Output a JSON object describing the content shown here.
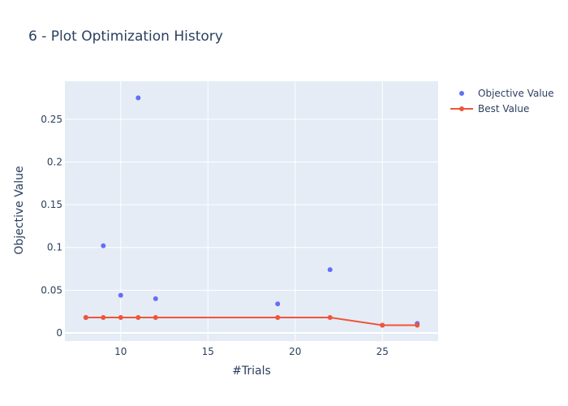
{
  "chart_data": {
    "type": "scatter",
    "title": "6 - Plot Optimization History",
    "xlabel": "#Trials",
    "ylabel": "Objective Value",
    "xlim": [
      6.8,
      28.2
    ],
    "ylim": [
      -0.0095,
      0.2945
    ],
    "x_ticks": [
      10,
      15,
      20,
      25
    ],
    "x_tick_labels": [
      "10",
      "15",
      "20",
      "25"
    ],
    "y_ticks": [
      0,
      0.05,
      0.1,
      0.15,
      0.2,
      0.25
    ],
    "y_tick_labels": [
      "0",
      "0.05",
      "0.1",
      "0.15",
      "0.2",
      "0.25"
    ],
    "grid": true,
    "legend_position": "top-right",
    "series": [
      {
        "name": "Objective Value",
        "mode": "markers",
        "color": "#636efa",
        "x": [
          8,
          9,
          10,
          11,
          12,
          19,
          22,
          25,
          27
        ],
        "y": [
          0.018,
          0.102,
          0.044,
          0.275,
          0.04,
          0.034,
          0.074,
          0.009,
          0.011
        ]
      },
      {
        "name": "Best Value",
        "mode": "lines+markers",
        "color": "#ef553b",
        "x": [
          8,
          9,
          10,
          11,
          12,
          19,
          22,
          25,
          27
        ],
        "y": [
          0.018,
          0.018,
          0.018,
          0.018,
          0.018,
          0.018,
          0.018,
          0.009,
          0.009
        ]
      }
    ]
  },
  "colors": {
    "plot_background": "#e5ecf6",
    "gridline": "#ffffff",
    "text": "#2a3f5f"
  }
}
